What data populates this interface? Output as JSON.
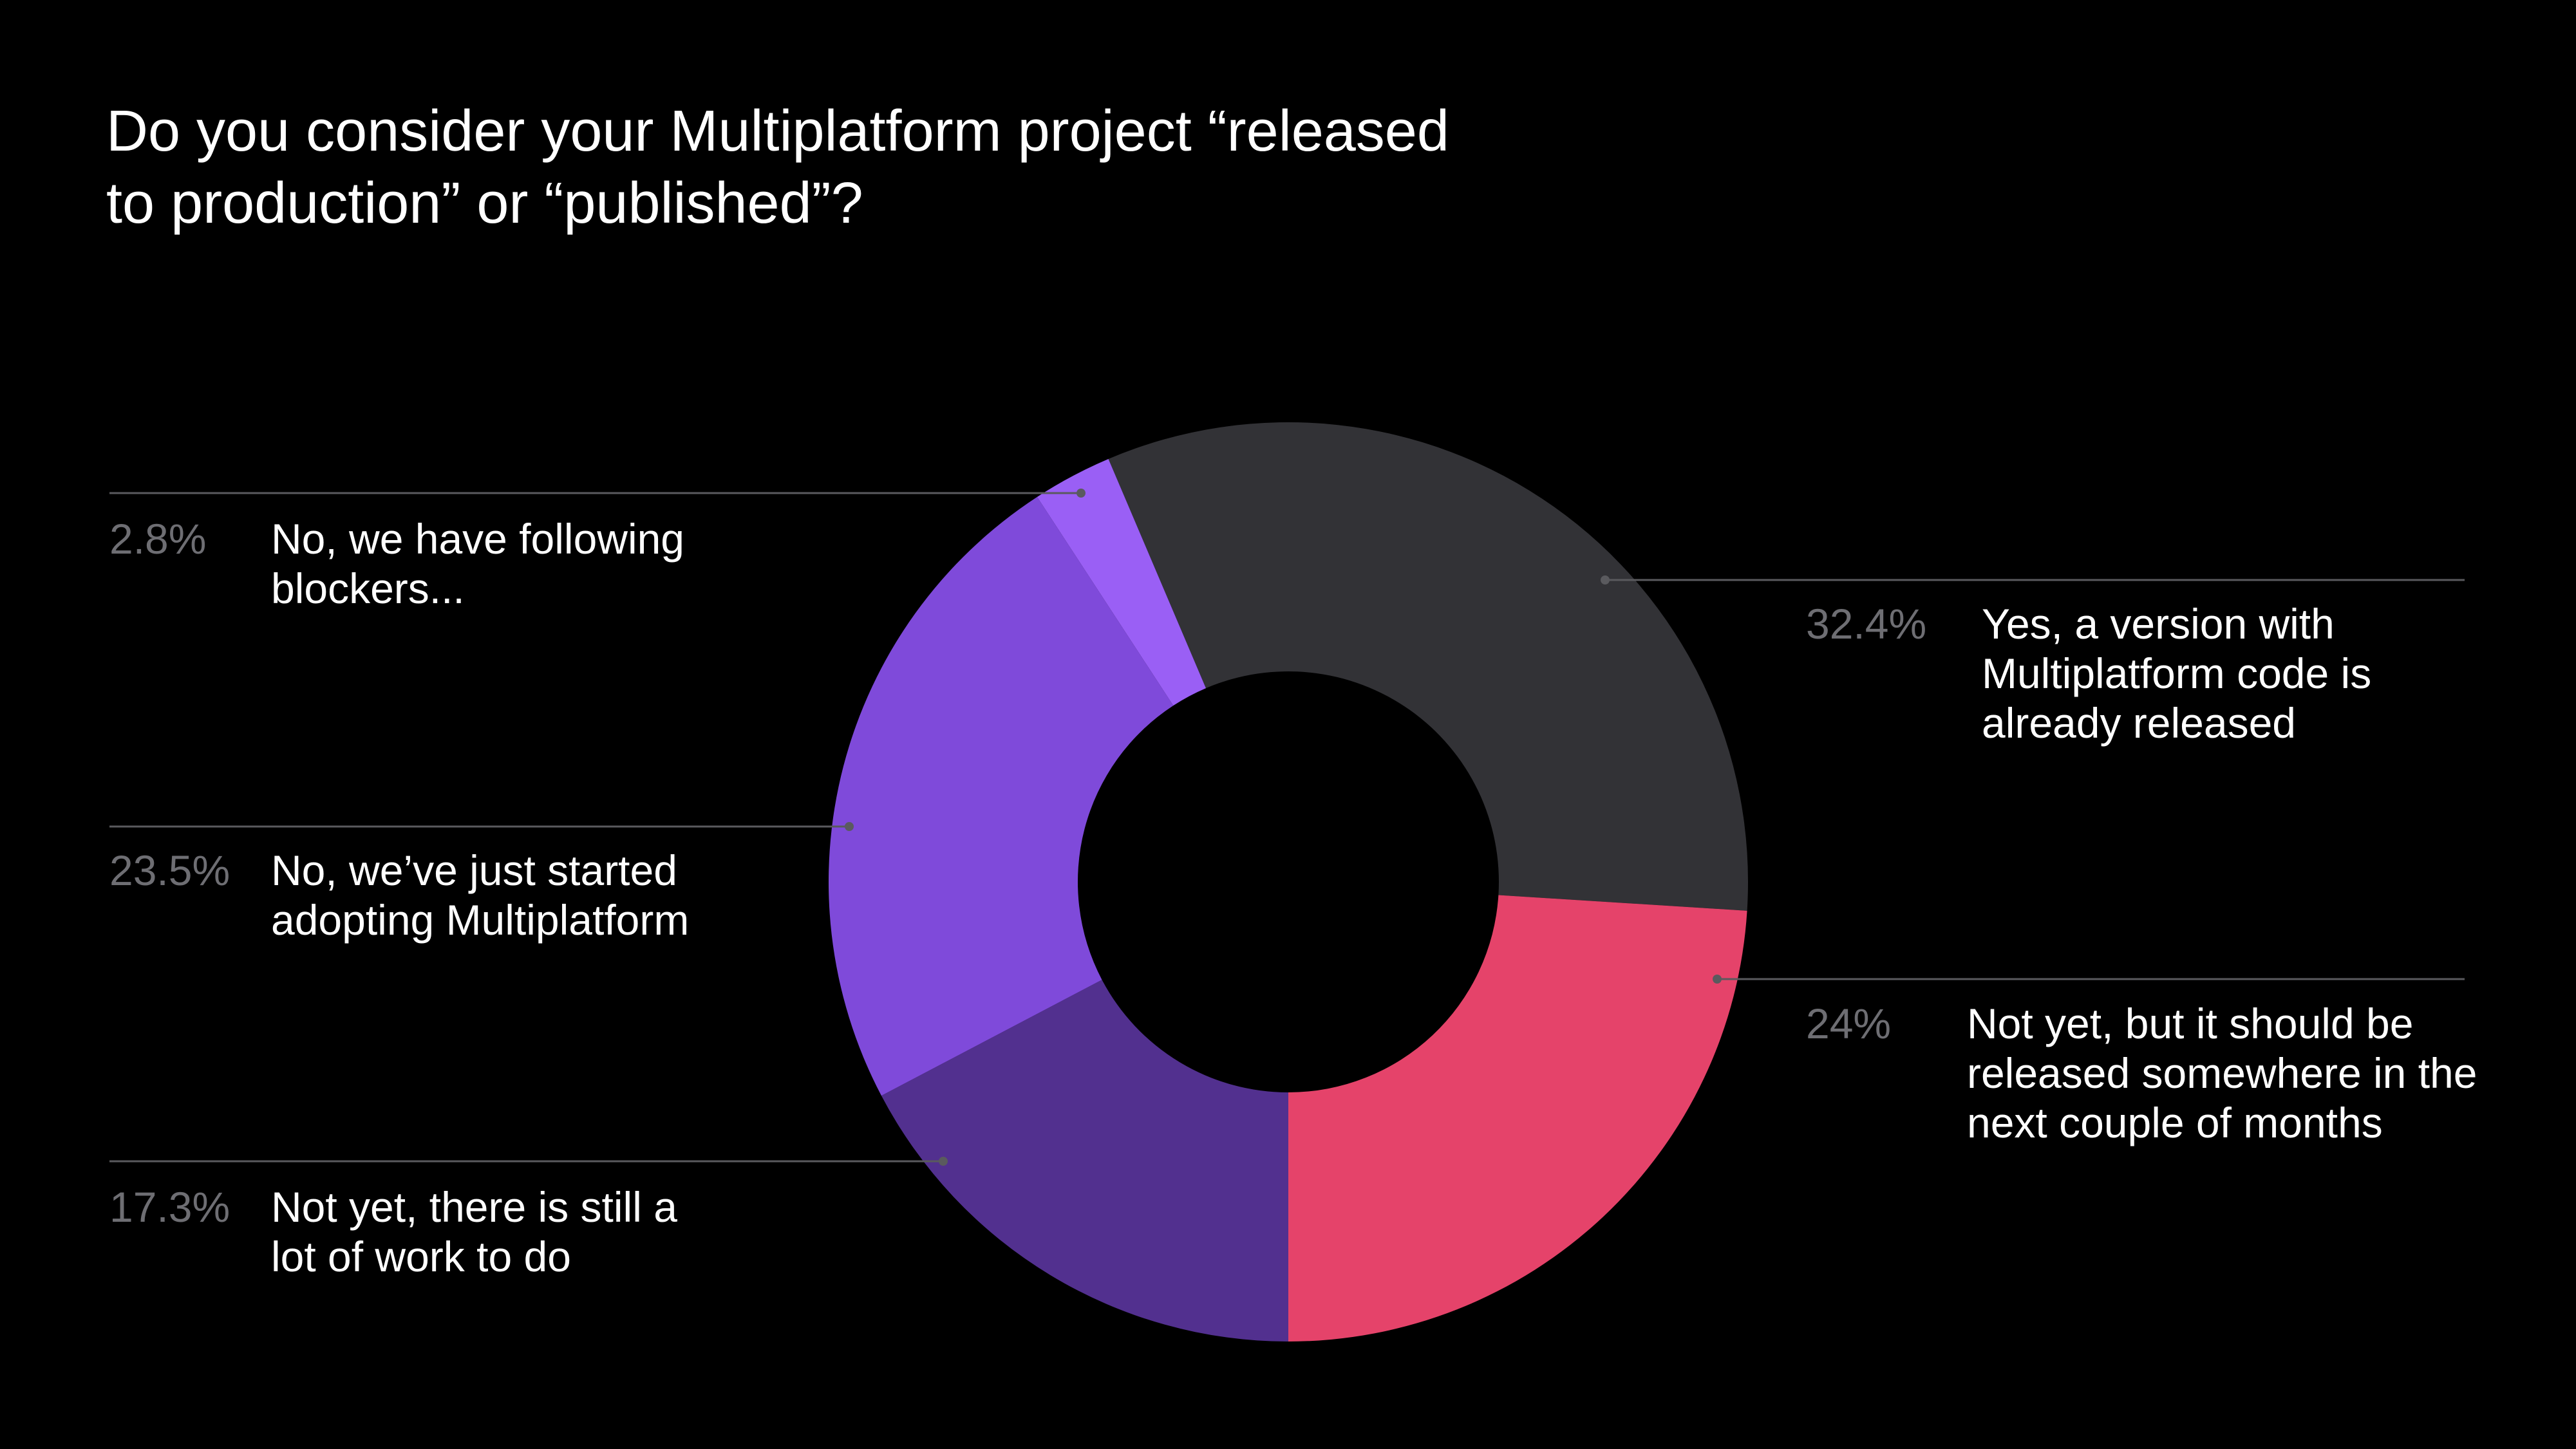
{
  "chart_data": {
    "type": "donut",
    "title": "Do you consider your Multiplatform project “released to production” or “published”?",
    "categories": [
      "Yes, a version with Multiplatform code is already released",
      "Not yet, but it should be released somewhere in the next couple of months",
      "Not yet, there is still a lot of work to do",
      "No, we’ve just started adopting Multiplatform",
      "No, we have following blockers..."
    ],
    "values": [
      32.4,
      24,
      17.3,
      23.5,
      2.8
    ],
    "value_labels": [
      "32.4%",
      "24%",
      "17.3%",
      "23.5%",
      "2.8%"
    ],
    "colors": [
      "#323236",
      "#e5436a",
      "#52308f",
      "#7f4ada",
      "#9a5ff5"
    ]
  }
}
